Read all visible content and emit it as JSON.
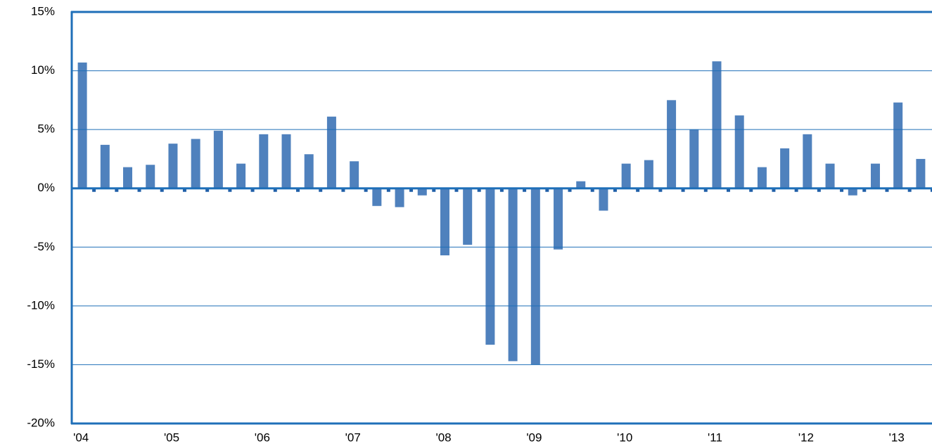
{
  "chart_data": {
    "type": "bar",
    "categories": [
      "'04",
      null,
      null,
      null,
      "'05",
      null,
      null,
      null,
      "'06",
      null,
      null,
      null,
      "'07",
      null,
      null,
      null,
      "'08",
      null,
      null,
      null,
      "'09",
      null,
      null,
      null,
      "'10",
      null,
      null,
      null,
      "'11",
      null,
      null,
      null,
      "'12",
      null,
      null,
      null,
      "'13",
      null
    ],
    "series": [
      {
        "color": "#4f81bd",
        "values": [
          10.7,
          3.7,
          1.8,
          2.0,
          3.8,
          4.2,
          4.9,
          2.1,
          4.6,
          4.6,
          2.9,
          6.1,
          2.3,
          -1.5,
          -1.6,
          -0.6,
          -5.7,
          -4.8,
          -13.3,
          -14.7,
          -15.0,
          -5.2,
          0.6,
          -1.9,
          2.1,
          2.4,
          7.5,
          5.0,
          10.8,
          6.2,
          1.8,
          3.4,
          4.6,
          2.1,
          -0.6,
          2.1,
          7.3,
          2.5
        ]
      },
      {
        "color": "#1f5fa8",
        "values": [
          -0.3,
          -0.3,
          -0.3,
          -0.3,
          -0.3,
          -0.3,
          -0.3,
          -0.3,
          -0.3,
          -0.3,
          -0.3,
          -0.3,
          -0.3,
          -0.3,
          -0.3,
          -0.3,
          -0.3,
          -0.3,
          -0.3,
          -0.3,
          -0.3,
          -0.3,
          -0.3,
          -0.3,
          -0.3,
          -0.3,
          -0.3,
          -0.3,
          -0.3,
          -0.3,
          -0.3,
          -0.3,
          -0.3,
          -0.3,
          -0.3,
          -0.3,
          -0.3,
          -0.3
        ]
      }
    ],
    "ylim": [
      -20,
      15
    ],
    "yticks": [
      {
        "value": -20,
        "label": "-20%"
      },
      {
        "value": -15,
        "label": "-15%"
      },
      {
        "value": -10,
        "label": "-10%"
      },
      {
        "value": -5,
        "label": "-5%"
      },
      {
        "value": 0,
        "label": "0%"
      },
      {
        "value": 5,
        "label": "5%"
      },
      {
        "value": 10,
        "label": "10%"
      },
      {
        "value": 15,
        "label": "15%"
      }
    ],
    "grid": true
  }
}
